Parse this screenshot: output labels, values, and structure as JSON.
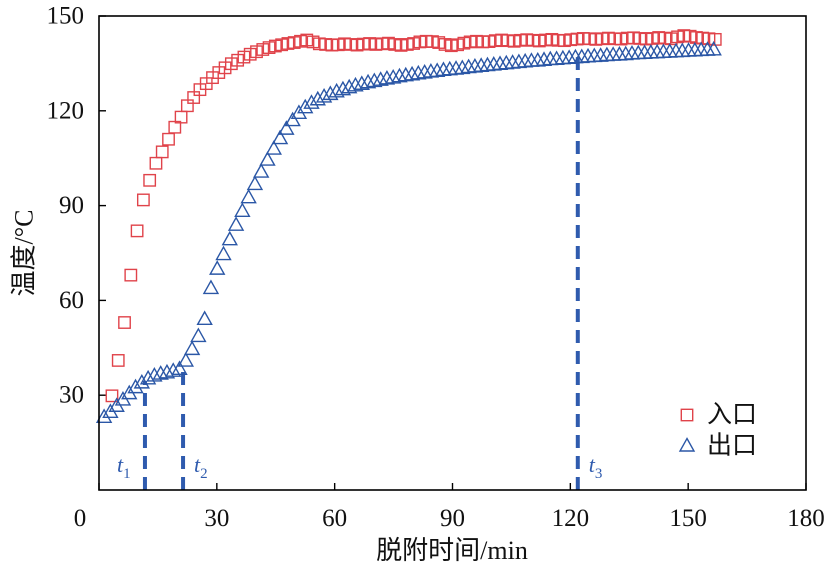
{
  "chart_data": {
    "type": "scatter",
    "xlabel": "脱附时间/min",
    "ylabel": "温度/°C",
    "xlim": [
      0,
      180
    ],
    "ylim": [
      0,
      150
    ],
    "xticks": [
      0,
      30,
      60,
      90,
      120,
      150,
      180
    ],
    "yticks": [
      30,
      60,
      90,
      120,
      150
    ],
    "grid": false,
    "legend_position": "bottom-right",
    "t_marker_color": "#2F5BAE",
    "series": [
      {
        "name": "入口",
        "marker": "square",
        "color": "#E0434A",
        "x": [
          3.3,
          4.9,
          6.5,
          8.1,
          9.7,
          11.3,
          12.9,
          14.5,
          16.1,
          17.7,
          19.3,
          20.9,
          22.5,
          24.1,
          25.7,
          27.3,
          28.9,
          30.5,
          32.1,
          33.7,
          35.3,
          36.9,
          38.5,
          40.1,
          41.7,
          43.3,
          44.9,
          46.5,
          48.1,
          49.7,
          51.3,
          52.9,
          54.5,
          56.1,
          57.7,
          59.3,
          60.9,
          62.5,
          64.1,
          65.7,
          67.3,
          68.9,
          70.5,
          72.1,
          73.7,
          75.3,
          76.9,
          78.5,
          80.1,
          81.7,
          83.3,
          84.9,
          86.5,
          88.1,
          89.7,
          91.3,
          92.9,
          94.5,
          96.1,
          97.7,
          99.3,
          100.9,
          102.5,
          104.1,
          105.7,
          107.3,
          108.9,
          110.5,
          112.1,
          113.7,
          115.3,
          116.9,
          118.5,
          120.1,
          121.7,
          123.3,
          124.9,
          126.5,
          128.1,
          129.7,
          131.3,
          132.9,
          134.5,
          136.1,
          137.7,
          139.3,
          140.9,
          142.5,
          144.1,
          145.7,
          147.3,
          148.9,
          150.5,
          152.1,
          153.7,
          155.3,
          156.9
        ],
        "y": [
          29.8,
          41.0,
          53.0,
          68.0,
          82.0,
          91.8,
          98.0,
          103.4,
          107.0,
          111.0,
          114.8,
          118.0,
          121.6,
          124.2,
          126.7,
          128.6,
          130.5,
          132.1,
          133.6,
          134.9,
          136.0,
          137.0,
          137.9,
          138.7,
          139.4,
          140.0,
          140.5,
          140.9,
          141.3,
          141.6,
          142.0,
          142.4,
          141.8,
          141.2,
          141.0,
          140.8,
          140.9,
          141.2,
          141.0,
          140.8,
          141.1,
          141.3,
          141.0,
          141.2,
          141.4,
          141.0,
          140.7,
          141.0,
          141.3,
          141.8,
          142.0,
          141.9,
          141.6,
          141.0,
          140.6,
          140.9,
          141.4,
          141.8,
          142.0,
          141.8,
          141.9,
          142.2,
          142.4,
          142.2,
          142.0,
          142.3,
          142.5,
          142.3,
          142.1,
          142.4,
          142.6,
          142.3,
          142.2,
          142.5,
          142.7,
          142.9,
          142.8,
          142.6,
          142.8,
          143.0,
          142.8,
          142.7,
          143.0,
          143.1,
          142.9,
          142.7,
          142.9,
          143.2,
          143.0,
          142.8,
          143.4,
          143.8,
          143.6,
          143.2,
          143.0,
          142.8,
          142.6
        ]
      },
      {
        "name": "出口",
        "marker": "triangle",
        "color": "#2B57A6",
        "x": [
          1.3,
          2.9,
          4.5,
          6.1,
          7.7,
          9.3,
          10.9,
          12.5,
          14.1,
          15.7,
          17.3,
          18.9,
          20.5,
          22.1,
          23.7,
          25.3,
          26.9,
          28.5,
          30.1,
          31.7,
          33.3,
          34.9,
          36.5,
          38.1,
          39.7,
          41.3,
          42.9,
          44.5,
          46.1,
          47.7,
          49.3,
          50.9,
          52.5,
          54.1,
          55.7,
          57.3,
          58.9,
          60.5,
          62.1,
          63.7,
          65.3,
          66.9,
          68.5,
          70.1,
          71.7,
          73.3,
          74.9,
          76.5,
          78.1,
          79.7,
          81.3,
          82.9,
          84.5,
          86.1,
          87.7,
          89.3,
          90.9,
          92.5,
          94.1,
          95.7,
          97.3,
          98.9,
          100.5,
          102.1,
          103.7,
          105.3,
          106.9,
          108.5,
          110.1,
          111.7,
          113.3,
          114.9,
          116.5,
          118.1,
          119.7,
          121.3,
          122.9,
          124.5,
          126.1,
          127.7,
          129.3,
          130.9,
          132.5,
          134.1,
          135.7,
          137.3,
          138.9,
          140.5,
          142.1,
          143.7,
          145.3,
          146.9,
          148.5,
          150.1,
          151.7,
          153.3,
          154.9,
          156.5
        ],
        "y": [
          23.0,
          24.6,
          26.5,
          28.5,
          30.5,
          32.4,
          33.9,
          35.2,
          36.1,
          36.7,
          37.1,
          37.6,
          38.2,
          40.8,
          44.5,
          48.6,
          54.0,
          63.8,
          69.9,
          74.5,
          79.2,
          83.8,
          88.2,
          92.5,
          96.7,
          100.6,
          104.4,
          107.9,
          111.2,
          114.2,
          116.9,
          119.2,
          121.0,
          122.4,
          123.5,
          124.4,
          125.2,
          126.0,
          126.7,
          127.3,
          127.9,
          128.4,
          128.9,
          129.3,
          129.7,
          130.1,
          130.4,
          130.8,
          131.1,
          131.4,
          131.7,
          132.0,
          132.3,
          132.5,
          132.8,
          133.0,
          133.2,
          133.4,
          133.7,
          133.9,
          134.1,
          134.3,
          134.5,
          134.7,
          134.9,
          135.1,
          135.3,
          135.5,
          135.7,
          135.8,
          136.0,
          136.2,
          136.3,
          136.5,
          136.6,
          136.8,
          136.9,
          137.1,
          137.2,
          137.3,
          137.5,
          137.6,
          137.7,
          137.8,
          138.0,
          138.1,
          138.2,
          138.3,
          138.4,
          138.5,
          138.6,
          138.7,
          138.8,
          138.9,
          139.0,
          139.1,
          139.2,
          139.3
        ]
      }
    ],
    "markers": [
      {
        "label": "t",
        "sub": "1",
        "x": 11.7,
        "y": 34.5,
        "label_position": "left"
      },
      {
        "label": "t",
        "sub": "2",
        "x": 21.4,
        "y": 38.6,
        "label_position": "right"
      },
      {
        "label": "t",
        "sub": "3",
        "x": 121.9,
        "y": 137.0,
        "label_position": "right"
      }
    ]
  }
}
